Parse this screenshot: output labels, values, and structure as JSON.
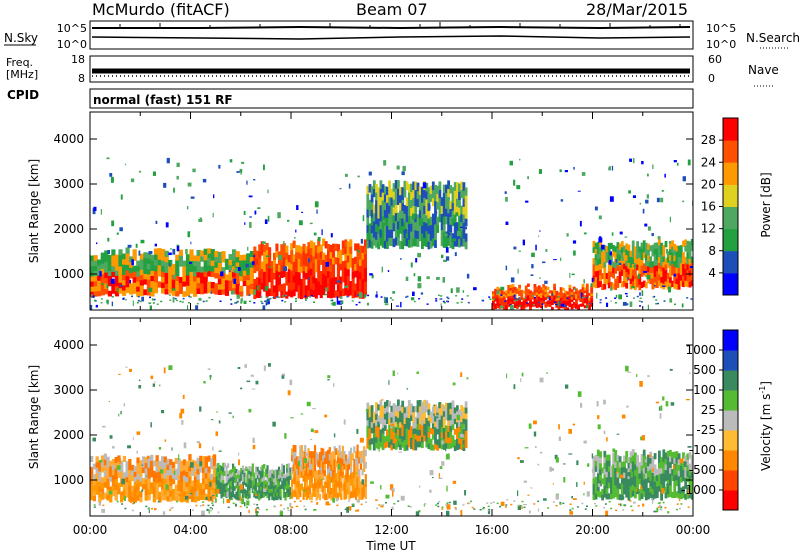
{
  "header": {
    "station": "McMurdo (fitACF)",
    "beam": "Beam 07",
    "date": "28/Mar/2015"
  },
  "status_panels": {
    "nsky_label": "N.Sky",
    "nsky_ticks": [
      "10^5",
      "10^0"
    ],
    "nsearch_label": "N.Search",
    "nsearch_ticks": [
      "10^5",
      "10^0"
    ],
    "freq_label": "Freq.",
    "freq_unit": "[MHz]",
    "freq_ticks": [
      "18",
      "8"
    ],
    "nave_label": "Nave",
    "nave_ticks": [
      "60",
      "0"
    ],
    "cpid_label": "CPID",
    "cpid_text": "normal (fast) 151 RF"
  },
  "chart_data": [
    {
      "type": "heatmap",
      "panel": "power",
      "ylabel": "Slant Range [km]",
      "xlabel": "",
      "ylim": [
        200,
        4600
      ],
      "y_ticks": [
        "1000",
        "2000",
        "3000",
        "4000"
      ],
      "colorbar": {
        "label": "Power [dB]",
        "ticks": [
          "28",
          "24",
          "20",
          "16",
          "12",
          "8",
          "4"
        ],
        "colors": [
          "#0000ff",
          "#1e4fb8",
          "#23a040",
          "#4fa860",
          "#e0d020",
          "#ff9900",
          "#ff5000",
          "#ff0000"
        ]
      },
      "regions": [
        {
          "t0": 0.0,
          "t1": 6.5,
          "r0": 550,
          "r1": 1500,
          "level": "high"
        },
        {
          "t0": 6.5,
          "t1": 11.0,
          "r0": 500,
          "r1": 1700,
          "level": "very high"
        },
        {
          "t0": 11.0,
          "t1": 15.0,
          "r0": 1600,
          "r1": 3000,
          "level": "low"
        },
        {
          "t0": 16.0,
          "t1": 20.0,
          "r0": 250,
          "r1": 700,
          "level": "very high"
        },
        {
          "t0": 20.0,
          "t1": 24.0,
          "r0": 700,
          "r1": 1700,
          "level": "high"
        }
      ]
    },
    {
      "type": "heatmap",
      "panel": "velocity",
      "ylabel": "Slant Range [km]",
      "xlabel": "Time UT",
      "ylim": [
        200,
        4600
      ],
      "y_ticks": [
        "1000",
        "2000",
        "3000",
        "4000"
      ],
      "x_ticks": [
        "00:00",
        "04:00",
        "08:00",
        "12:00",
        "16:00",
        "20:00",
        "00:00"
      ],
      "colorbar": {
        "label": "Velocity [m s",
        "unit_sup": "-1",
        "unit_close": "]",
        "ticks": [
          "1000",
          "500",
          "100",
          "25",
          "-25",
          "-100",
          "-500",
          "-1000"
        ],
        "colors": [
          "#ff0000",
          "#ff4400",
          "#ff8800",
          "#ffbb33",
          "#bbbbbb",
          "#55bb33",
          "#3a8a60",
          "#1e4fb8",
          "#0000ff"
        ]
      },
      "regions": [
        {
          "t0": 0.0,
          "t1": 5.0,
          "r0": 550,
          "r1": 1500,
          "dir": "away-orange"
        },
        {
          "t0": 5.0,
          "t1": 8.0,
          "r0": 600,
          "r1": 1300,
          "dir": "toward-green"
        },
        {
          "t0": 8.0,
          "t1": 11.0,
          "r0": 600,
          "r1": 1700,
          "dir": "away-orange"
        },
        {
          "t0": 11.0,
          "t1": 15.0,
          "r0": 1700,
          "r1": 2700,
          "dir": "mixed"
        },
        {
          "t0": 20.0,
          "t1": 24.0,
          "r0": 600,
          "r1": 1600,
          "dir": "toward-green"
        }
      ]
    }
  ]
}
